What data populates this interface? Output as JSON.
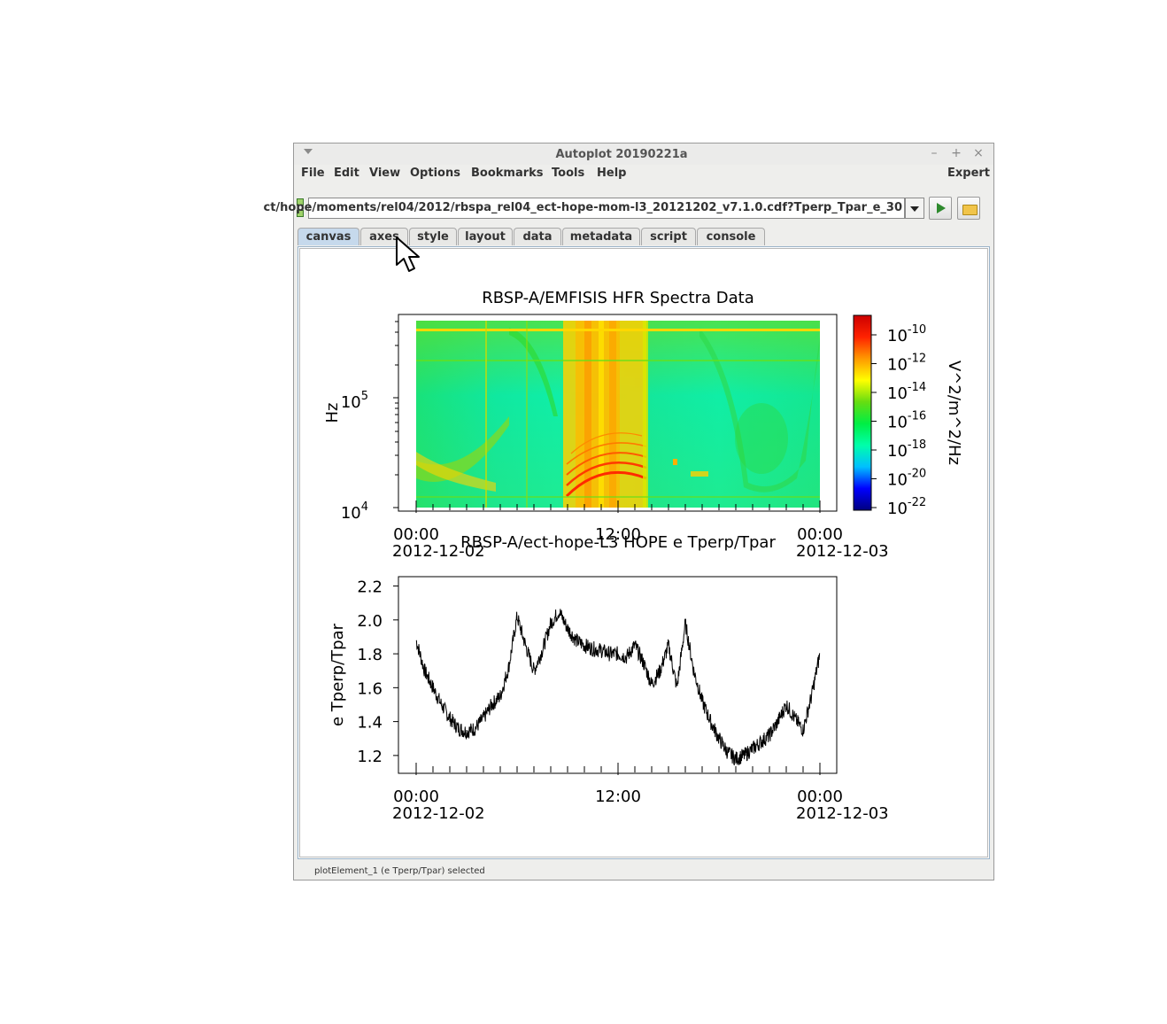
{
  "window": {
    "title": "Autoplot 20190221a",
    "controls": [
      "–",
      "+",
      "×"
    ]
  },
  "menubar": {
    "items": [
      "File",
      "Edit",
      "View",
      "Options",
      "Bookmarks",
      "Tools",
      "Help"
    ],
    "expert_label": "Expert"
  },
  "url_bar": {
    "value": "ct/hope/moments/rel04/2012/rbspa_rel04_ect-hope-mom-l3_20121202_v7.1.0.cdf?Tperp_Tpar_e_30"
  },
  "tabs": [
    "canvas",
    "axes",
    "style",
    "layout",
    "data",
    "metadata",
    "script",
    "console"
  ],
  "active_tab": "canvas",
  "status": "plotElement_1 (e Tperp/Tpar) selected",
  "chart_data": [
    {
      "type": "heatmap",
      "title": "RBSP-A/EMFISIS  HFR Spectra Data",
      "ylabel": "Hz",
      "zlabel": "V^2/m^2/Hz",
      "x_ticks": [
        {
          "time": "00:00",
          "date": "2012-12-02"
        },
        {
          "time": "12:00",
          "date": ""
        },
        {
          "time": "00:00",
          "date": "2012-12-03"
        }
      ],
      "y_scale": "log",
      "y_ticks": [
        {
          "base": "10",
          "exp": "4"
        },
        {
          "base": "10",
          "exp": "5"
        }
      ],
      "z_scale": "log",
      "z_ticks": [
        {
          "base": "10",
          "exp": "-10"
        },
        {
          "base": "10",
          "exp": "-12"
        },
        {
          "base": "10",
          "exp": "-14"
        },
        {
          "base": "10",
          "exp": "-16"
        },
        {
          "base": "10",
          "exp": "-18"
        },
        {
          "base": "10",
          "exp": "-20"
        },
        {
          "base": "10",
          "exp": "-22"
        }
      ],
      "colormap": [
        "#00007f",
        "#0000ff",
        "#00bfff",
        "#00ffaa",
        "#00ee44",
        "#66dd11",
        "#ffff00",
        "#ff9900",
        "#ff2200",
        "#cc0000"
      ]
    },
    {
      "type": "line",
      "title": "RBSP-A/ect-hope-L3  HOPE e Tperp/Tpar",
      "ylabel": "e Tperp/Tpar",
      "y_ticks": [
        "2.2",
        "2.0",
        "1.8",
        "1.6",
        "1.4",
        "1.2"
      ],
      "x_ticks": [
        {
          "time": "00:00",
          "date": "2012-12-02"
        },
        {
          "time": "12:00",
          "date": ""
        },
        {
          "time": "00:00",
          "date": "2012-12-03"
        }
      ],
      "series": [
        {
          "x_hours": [
            0,
            0.5,
            1,
            1.5,
            2,
            2.5,
            3,
            3.5,
            4,
            4.5,
            5,
            5.5,
            6,
            6.5,
            7,
            7.5,
            8,
            8.5,
            9,
            9.5,
            10,
            10.5,
            11,
            11.5,
            12,
            12.5,
            13,
            13.5,
            14,
            14.5,
            15,
            15.5,
            16,
            16.5,
            17,
            17.5,
            18,
            18.5,
            19,
            19.5,
            20,
            20.5,
            21,
            21.5,
            22,
            22.5,
            23,
            23.5,
            24
          ],
          "values": [
            1.88,
            1.7,
            1.6,
            1.5,
            1.42,
            1.36,
            1.34,
            1.36,
            1.42,
            1.5,
            1.55,
            1.72,
            2.02,
            1.85,
            1.7,
            1.82,
            1.98,
            2.05,
            1.95,
            1.88,
            1.85,
            1.83,
            1.82,
            1.8,
            1.8,
            1.78,
            1.85,
            1.75,
            1.62,
            1.7,
            1.85,
            1.6,
            1.98,
            1.7,
            1.52,
            1.4,
            1.3,
            1.22,
            1.18,
            1.2,
            1.24,
            1.28,
            1.32,
            1.4,
            1.5,
            1.42,
            1.35,
            1.55,
            1.8
          ]
        }
      ]
    }
  ]
}
